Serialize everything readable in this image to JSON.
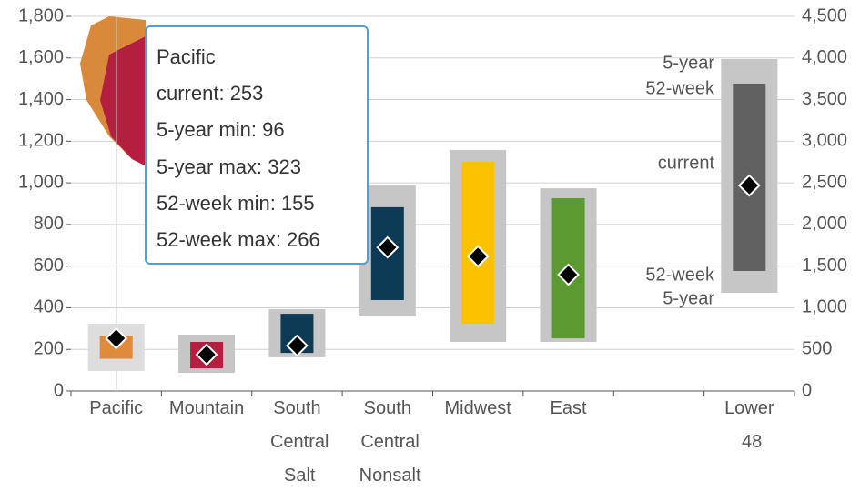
{
  "chart_data": {
    "type": "range",
    "categories": [
      "Pacific",
      "Mountain",
      "South Central Salt",
      "South Central Nonsalt",
      "Midwest",
      "East",
      null,
      "Lower 48"
    ],
    "current": [
      253,
      175,
      218,
      690,
      647,
      559,
      null,
      2468
    ],
    "five_year_min": [
      96,
      87,
      162,
      358,
      236,
      236,
      null,
      1180
    ],
    "five_year_max": [
      323,
      271,
      393,
      987,
      1158,
      974,
      null,
      3987
    ],
    "week52_min": [
      155,
      109,
      183,
      437,
      323,
      253,
      null,
      1442
    ],
    "week52_max": [
      266,
      236,
      371,
      883,
      1101,
      926,
      null,
      3692
    ],
    "colors": [
      "#e08a3c",
      "#b3203f",
      "#0d3b55",
      "#0d3b55",
      "#fcc200",
      "#5b9a30",
      null,
      "#616161"
    ],
    "axes": [
      "y",
      "y",
      "y",
      "y",
      "y",
      "y",
      null,
      "y2"
    ],
    "ylim": [
      0,
      1800
    ],
    "yticks": [
      0,
      200,
      400,
      600,
      800,
      {
        "value": 1000,
        "label": "1,000"
      },
      {
        "value": 1200,
        "label": "1,200"
      },
      {
        "value": 1400,
        "label": "1,400"
      },
      {
        "value": 1600,
        "label": "1,600"
      },
      {
        "value": 1800,
        "label": "1,800"
      }
    ],
    "y2lim": [
      0,
      4500
    ],
    "y2ticks": [
      0,
      500,
      {
        "value": 1000,
        "label": "1,000"
      },
      {
        "value": 1500,
        "label": "1,500"
      },
      {
        "value": 2000,
        "label": "2,000"
      },
      {
        "value": 2500,
        "label": "2,500"
      },
      {
        "value": 3000,
        "label": "3,000"
      },
      {
        "value": 3500,
        "label": "3,500"
      },
      {
        "value": 4000,
        "label": "4,000"
      },
      {
        "value": 4500,
        "label": "4,500"
      }
    ],
    "grid": true,
    "annotations": [
      "5-year",
      "52-week",
      "current",
      "52-week",
      "5-year"
    ],
    "tooltip": {
      "title": "Pacific",
      "lines": [
        "current: 253",
        "5-year min: 96",
        "5-year max: 323",
        "52-week min: 155",
        "52-week max: 266"
      ]
    }
  }
}
